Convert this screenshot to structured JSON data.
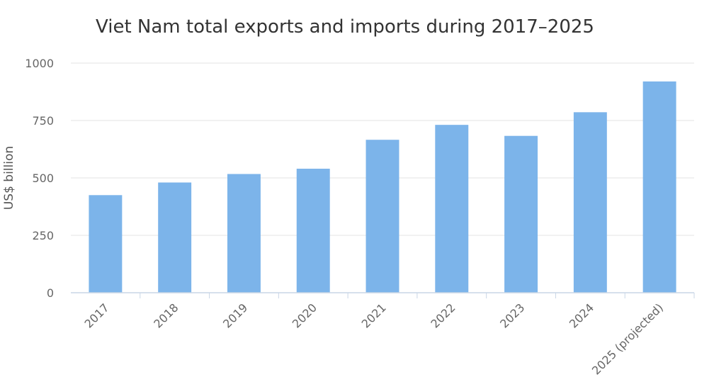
{
  "chart_data": {
    "type": "bar",
    "title": "Viet Nam total exports and imports during 2017–2025",
    "xlabel": "",
    "ylabel": "US$ billion",
    "categories": [
      "2017",
      "2018",
      "2019",
      "2020",
      "2021",
      "2022",
      "2023",
      "2024",
      "2025 (projected)"
    ],
    "values": [
      425,
      480,
      517,
      540,
      666,
      731,
      683,
      786,
      920
    ],
    "ylim": [
      0,
      1000
    ],
    "yticks": [
      0,
      250,
      500,
      750,
      1000
    ],
    "grid": true,
    "legend": "none",
    "colors": {
      "bar": "#7cb4ea",
      "title": "#333333",
      "tick": "#666666",
      "grid": "#e3e3e3"
    }
  }
}
